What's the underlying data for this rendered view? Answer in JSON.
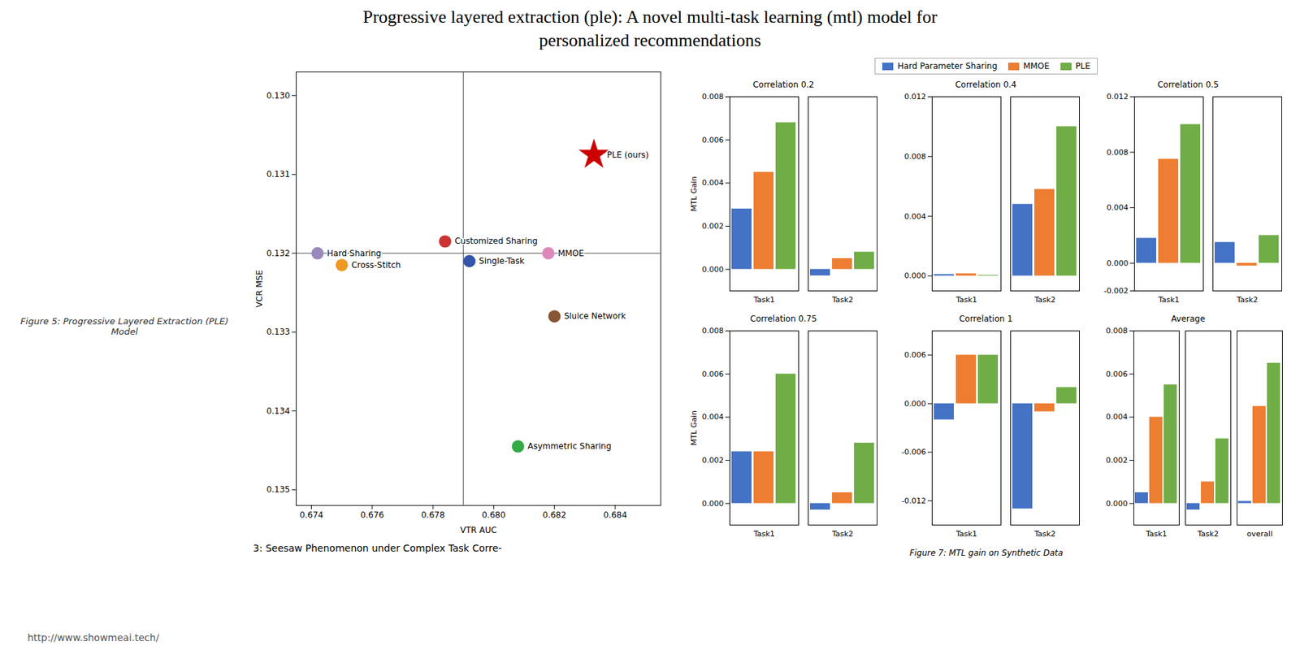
{
  "title": "Progressive layered extraction (ple): A novel multi-task learning (mtl) model for",
  "subtitle": "personalized recommendations",
  "annotations": [
    "Figure 5: Progressive Layered Extraction (PLE) Model",
    "Figure 7: MTL gain on Synthetic Data",
    "http://www.showmeai.tech/"
  ],
  "chart_data": [
    {
      "type": "scatter",
      "xlabel": "VTR AUC",
      "ylabel": "VCR MSE",
      "annotations": [
        "3: Seesaw Phenomenon under Complex Task Corre-"
      ],
      "xlim": [
        0.6735,
        0.6855
      ],
      "ylim": [
        0.1352,
        0.1297
      ],
      "xticks": [
        0.674,
        0.676,
        0.678,
        {
          "value": 0.68,
          "label": "0.680"
        },
        0.682,
        0.684
      ],
      "yticks": [
        {
          "value": 0.13,
          "label": "0.130"
        },
        0.131,
        0.132,
        0.133,
        0.134,
        0.135
      ],
      "hline": 0.132,
      "vline": 0.679,
      "series": [
        {
          "name": "PLE (ours)",
          "color": "#cc0000",
          "marker": "star",
          "x": [
            0.6833
          ],
          "values": [
            0.13075
          ]
        },
        {
          "name": "Hard Sharing",
          "color": "#9988bb",
          "marker": "circle",
          "x": [
            0.6742
          ],
          "values": [
            0.132
          ]
        },
        {
          "name": "Cross-Stitch",
          "color": "#ee9922",
          "marker": "circle",
          "x": [
            0.675
          ],
          "values": [
            0.13215
          ]
        },
        {
          "name": "Customized Sharing",
          "color": "#cc3333",
          "marker": "circle",
          "x": [
            0.6784
          ],
          "values": [
            0.13185
          ]
        },
        {
          "name": "Single-Task",
          "color": "#3355aa",
          "marker": "circle",
          "x": [
            0.6792
          ],
          "values": [
            0.1321
          ]
        },
        {
          "name": "MMOE",
          "color": "#dd88bb",
          "marker": "circle",
          "x": [
            0.6818
          ],
          "values": [
            0.132
          ]
        },
        {
          "name": "Sluice Network",
          "color": "#885533",
          "marker": "circle",
          "x": [
            0.682
          ],
          "values": [
            0.1328
          ]
        },
        {
          "name": "Asymmetric Sharing",
          "color": "#33aa44",
          "marker": "circle",
          "x": [
            0.6808
          ],
          "values": [
            0.13445
          ]
        }
      ]
    },
    {
      "type": "bar",
      "title": "Correlation 0.2",
      "categories": [
        "Task1",
        "Task2"
      ],
      "ylabel": "MTL Gain",
      "legend": "top",
      "ylim": [
        -0.001,
        0.008
      ],
      "yticks": [
        {
          "value": 0,
          "label": "0.000"
        },
        0.002,
        0.004,
        0.006,
        0.008
      ],
      "series": [
        {
          "name": "Hard Parameter Sharing",
          "color": "#4472c4",
          "values": [
            0.0028,
            -0.0003
          ]
        },
        {
          "name": "MMOE",
          "color": "#ed7d31",
          "values": [
            0.0045,
            0.0005
          ]
        },
        {
          "name": "PLE",
          "color": "#70ad47",
          "values": [
            0.0068,
            0.0008
          ]
        }
      ]
    },
    {
      "type": "bar",
      "title": "Correlation 0.4",
      "categories": [
        "Task1",
        "Task2"
      ],
      "ylim": [
        -0.001,
        0.012
      ],
      "yticks": [
        {
          "value": 0,
          "label": "0.000"
        },
        0.004,
        0.008,
        0.012
      ],
      "series": [
        {
          "name": "Hard Parameter Sharing",
          "color": "#4472c4",
          "values": [
            0.0001,
            0.0048
          ]
        },
        {
          "name": "MMOE",
          "color": "#ed7d31",
          "values": [
            0.00015,
            0.0058
          ]
        },
        {
          "name": "PLE",
          "color": "#70ad47",
          "values": [
            5e-05,
            0.01
          ]
        }
      ]
    },
    {
      "type": "bar",
      "title": "Correlation 0.5",
      "categories": [
        "Task1",
        "Task2"
      ],
      "ylim": [
        -0.002,
        0.012
      ],
      "yticks": [
        -0.002,
        {
          "value": 0,
          "label": "0.000"
        },
        0.004,
        0.008,
        0.012
      ],
      "series": [
        {
          "name": "Hard Parameter Sharing",
          "color": "#4472c4",
          "values": [
            0.0018,
            0.0015
          ]
        },
        {
          "name": "MMOE",
          "color": "#ed7d31",
          "values": [
            0.0075,
            -0.0002
          ]
        },
        {
          "name": "PLE",
          "color": "#70ad47",
          "values": [
            0.01,
            0.002
          ]
        }
      ]
    },
    {
      "type": "bar",
      "title": "Correlation 0.75",
      "categories": [
        "Task1",
        "Task2"
      ],
      "ylabel": "MTL Gain",
      "ylim": [
        -0.001,
        0.008
      ],
      "yticks": [
        {
          "value": 0,
          "label": "0.000"
        },
        0.002,
        0.004,
        0.006,
        0.008
      ],
      "series": [
        {
          "name": "Hard Parameter Sharing",
          "color": "#4472c4",
          "values": [
            0.0024,
            -0.0003
          ]
        },
        {
          "name": "MMOE",
          "color": "#ed7d31",
          "values": [
            0.0024,
            0.0005
          ]
        },
        {
          "name": "PLE",
          "color": "#70ad47",
          "values": [
            0.006,
            0.0028
          ]
        }
      ]
    },
    {
      "type": "bar",
      "title": "Correlation 1",
      "categories": [
        "Task1",
        "Task2"
      ],
      "ylim": [
        -0.015,
        0.009
      ],
      "yticks": [
        -0.012,
        -0.006,
        {
          "value": 0,
          "label": "0.000"
        },
        0.006
      ],
      "series": [
        {
          "name": "Hard Parameter Sharing",
          "color": "#4472c4",
          "values": [
            -0.002,
            -0.013
          ]
        },
        {
          "name": "MMOE",
          "color": "#ed7d31",
          "values": [
            0.006,
            -0.001
          ]
        },
        {
          "name": "PLE",
          "color": "#70ad47",
          "values": [
            0.006,
            0.002
          ]
        }
      ]
    },
    {
      "type": "bar",
      "title": "Average",
      "categories": [
        "Task1",
        "Task2",
        "overall"
      ],
      "ylim": [
        -0.001,
        0.008
      ],
      "yticks": [
        {
          "value": 0,
          "label": "0.000"
        },
        0.002,
        0.004,
        0.006,
        0.008
      ],
      "series": [
        {
          "name": "Hard Parameter Sharing",
          "color": "#4472c4",
          "values": [
            0.0005,
            -0.0003,
            0.0001
          ]
        },
        {
          "name": "MMOE",
          "color": "#ed7d31",
          "values": [
            0.004,
            0.001,
            0.0045
          ]
        },
        {
          "name": "PLE",
          "color": "#70ad47",
          "values": [
            0.0055,
            0.003,
            0.0065
          ]
        }
      ]
    }
  ]
}
